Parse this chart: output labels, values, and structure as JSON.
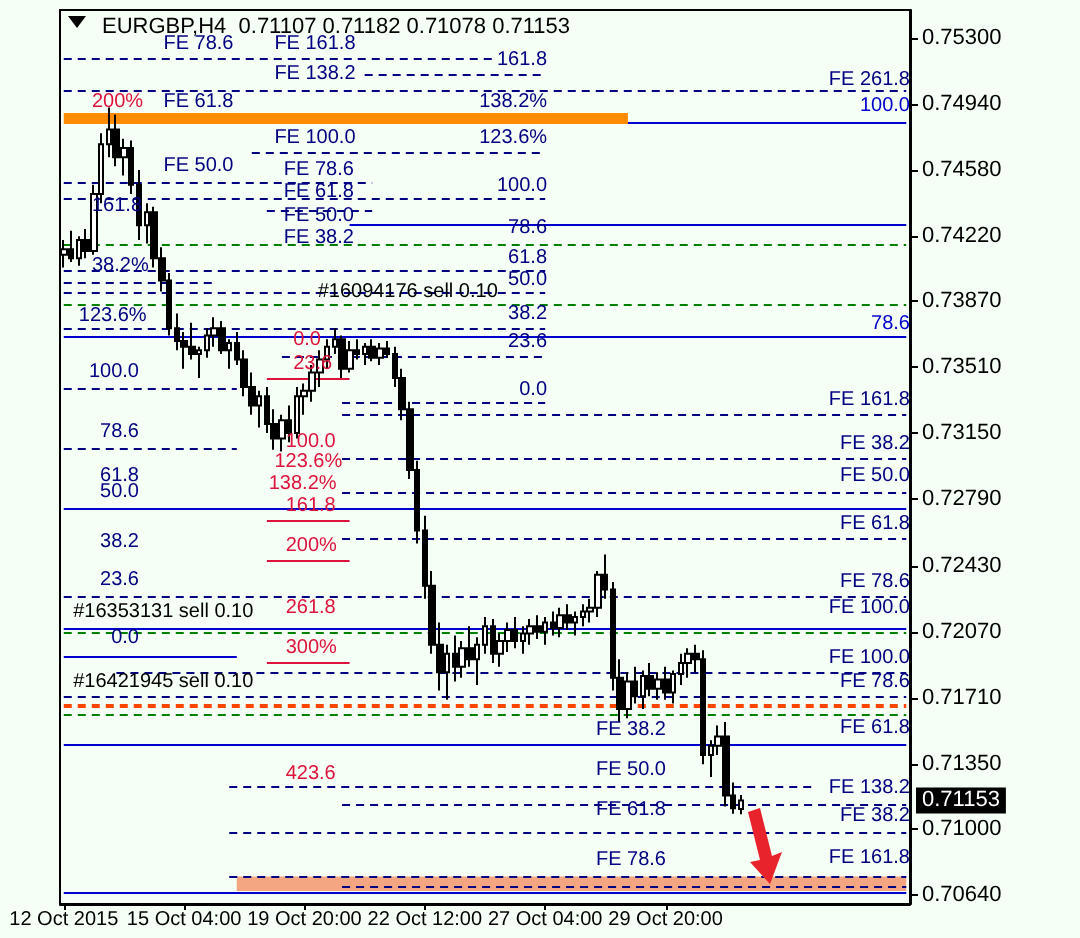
{
  "chart_data": {
    "type": "candlestick",
    "title": "EURGBP,H4  0.71107 0.71182 0.71078 0.71153",
    "color": "#000000",
    "categories": [
      "12 Oct 2015",
      null,
      null,
      null,
      null,
      null,
      null,
      null,
      null,
      null,
      null,
      null,
      null,
      null,
      null,
      null,
      "15 Oct 04:00",
      null,
      null,
      null,
      null,
      null,
      null,
      null,
      null,
      null,
      null,
      null,
      null,
      null,
      null,
      null,
      "19 Oct 20:00",
      null,
      null,
      null,
      null,
      null,
      null,
      null,
      null,
      null,
      null,
      null,
      null,
      null,
      null,
      null,
      "22 Oct 12:00",
      null,
      null,
      null,
      null,
      null,
      null,
      null,
      null,
      null,
      null,
      null,
      null,
      null,
      null,
      null,
      "27 Oct 04:00",
      null,
      null,
      null,
      null,
      null,
      null,
      null,
      null,
      null,
      null,
      null,
      null,
      null,
      null,
      null,
      "29 Oct 20:00",
      null,
      null,
      null,
      null,
      null,
      null,
      null,
      null,
      null,
      null,
      null,
      null,
      null,
      null,
      null,
      null,
      null,
      null,
      null,
      null,
      null,
      null,
      null,
      null,
      null,
      null,
      null,
      null,
      null,
      null,
      null,
      null
    ],
    "ohlc": [
      [
        0.7412,
        0.742,
        0.7405,
        0.7415
      ],
      [
        0.7415,
        0.7425,
        0.7408,
        0.741
      ],
      [
        0.741,
        0.7422,
        0.7406,
        0.742
      ],
      [
        0.742,
        0.7426,
        0.741,
        0.7414
      ],
      [
        0.7414,
        0.745,
        0.7412,
        0.7445
      ],
      [
        0.7445,
        0.7478,
        0.744,
        0.7472
      ],
      [
        0.7472,
        0.7492,
        0.7465,
        0.748
      ],
      [
        0.748,
        0.7488,
        0.746,
        0.7465
      ],
      [
        0.7465,
        0.7475,
        0.7455,
        0.747
      ],
      [
        0.747,
        0.7474,
        0.7445,
        0.745
      ],
      [
        0.745,
        0.7458,
        0.742,
        0.7428
      ],
      [
        0.7428,
        0.744,
        0.7418,
        0.7435
      ],
      [
        0.7435,
        0.7438,
        0.7405,
        0.741
      ],
      [
        0.741,
        0.7416,
        0.7392,
        0.7398
      ],
      [
        0.7398,
        0.7402,
        0.7368,
        0.7372
      ],
      [
        0.7372,
        0.738,
        0.736,
        0.7365
      ],
      [
        0.7365,
        0.737,
        0.735,
        0.7362
      ],
      [
        0.7362,
        0.7375,
        0.7355,
        0.7358
      ],
      [
        0.7358,
        0.7362,
        0.7345,
        0.736
      ],
      [
        0.736,
        0.7372,
        0.7356,
        0.7368
      ],
      [
        0.7368,
        0.7378,
        0.7362,
        0.7372
      ],
      [
        0.7372,
        0.7376,
        0.7358,
        0.736
      ],
      [
        0.736,
        0.7366,
        0.735,
        0.7364
      ],
      [
        0.7364,
        0.737,
        0.7352,
        0.7355
      ],
      [
        0.7355,
        0.736,
        0.7335,
        0.734
      ],
      [
        0.734,
        0.7348,
        0.7325,
        0.733
      ],
      [
        0.733,
        0.7338,
        0.7318,
        0.7335
      ],
      [
        0.7335,
        0.734,
        0.7315,
        0.732
      ],
      [
        0.732,
        0.7328,
        0.7306,
        0.7312
      ],
      [
        0.7312,
        0.7325,
        0.7305,
        0.7322
      ],
      [
        0.7322,
        0.733,
        0.731,
        0.7315
      ],
      [
        0.7315,
        0.734,
        0.7312,
        0.7335
      ],
      [
        0.7335,
        0.7342,
        0.7325,
        0.7338
      ],
      [
        0.7338,
        0.7352,
        0.7332,
        0.7348
      ],
      [
        0.7348,
        0.736,
        0.734,
        0.7355
      ],
      [
        0.7355,
        0.7366,
        0.735,
        0.7362
      ],
      [
        0.7362,
        0.7372,
        0.7358,
        0.7366
      ],
      [
        0.7366,
        0.7368,
        0.7345,
        0.735
      ],
      [
        0.735,
        0.7365,
        0.7348,
        0.736
      ],
      [
        0.736,
        0.7366,
        0.7355,
        0.7358
      ],
      [
        0.7358,
        0.7364,
        0.7352,
        0.7362
      ],
      [
        0.7362,
        0.7366,
        0.7354,
        0.7356
      ],
      [
        0.7356,
        0.7364,
        0.7352,
        0.7361
      ],
      [
        0.7361,
        0.7365,
        0.7356,
        0.7358
      ],
      [
        0.7358,
        0.7362,
        0.734,
        0.7345
      ],
      [
        0.7345,
        0.735,
        0.7322,
        0.7328
      ],
      [
        0.7328,
        0.7332,
        0.729,
        0.7295
      ],
      [
        0.7295,
        0.73,
        0.7255,
        0.7262
      ],
      [
        0.7262,
        0.727,
        0.7225,
        0.7232
      ],
      [
        0.7232,
        0.724,
        0.7195,
        0.72
      ],
      [
        0.72,
        0.7212,
        0.7175,
        0.7185
      ],
      [
        0.7185,
        0.72,
        0.717,
        0.7195
      ],
      [
        0.7195,
        0.7205,
        0.718,
        0.7188
      ],
      [
        0.7188,
        0.7202,
        0.7182,
        0.7198
      ],
      [
        0.7198,
        0.721,
        0.7188,
        0.7192
      ],
      [
        0.7192,
        0.7204,
        0.7178,
        0.72
      ],
      [
        0.72,
        0.7215,
        0.7195,
        0.721
      ],
      [
        0.721,
        0.7214,
        0.719,
        0.7195
      ],
      [
        0.7195,
        0.7206,
        0.7188,
        0.7202
      ],
      [
        0.7202,
        0.7212,
        0.7196,
        0.7208
      ],
      [
        0.7208,
        0.7215,
        0.7198,
        0.7202
      ],
      [
        0.7202,
        0.721,
        0.7195,
        0.7206
      ],
      [
        0.7206,
        0.7214,
        0.72,
        0.721
      ],
      [
        0.721,
        0.7216,
        0.7203,
        0.7207
      ],
      [
        0.7207,
        0.7215,
        0.72,
        0.7212
      ],
      [
        0.7212,
        0.7218,
        0.7205,
        0.7209
      ],
      [
        0.7209,
        0.722,
        0.7204,
        0.7216
      ],
      [
        0.7216,
        0.7222,
        0.7208,
        0.7212
      ],
      [
        0.7212,
        0.7218,
        0.7205,
        0.7215
      ],
      [
        0.7215,
        0.7222,
        0.721,
        0.7218
      ],
      [
        0.7218,
        0.7225,
        0.7212,
        0.722
      ],
      [
        0.722,
        0.724,
        0.7215,
        0.7238
      ],
      [
        0.7238,
        0.7249,
        0.7225,
        0.723
      ],
      [
        0.723,
        0.7234,
        0.7175,
        0.7182
      ],
      [
        0.7182,
        0.7192,
        0.7158,
        0.7165
      ],
      [
        0.7165,
        0.7185,
        0.716,
        0.718
      ],
      [
        0.718,
        0.7188,
        0.7168,
        0.7172
      ],
      [
        0.7172,
        0.7186,
        0.7165,
        0.7183
      ],
      [
        0.7183,
        0.719,
        0.7172,
        0.7176
      ],
      [
        0.7176,
        0.7185,
        0.717,
        0.7181
      ],
      [
        0.7181,
        0.7188,
        0.717,
        0.7174
      ],
      [
        0.7174,
        0.7186,
        0.7168,
        0.7184
      ],
      [
        0.7184,
        0.7195,
        0.7178,
        0.719
      ],
      [
        0.719,
        0.7198,
        0.7182,
        0.7195
      ],
      [
        0.7195,
        0.72,
        0.7185,
        0.7192
      ],
      [
        0.7192,
        0.7197,
        0.7135,
        0.714
      ],
      [
        0.714,
        0.7148,
        0.7128,
        0.7145
      ],
      [
        0.7145,
        0.7156,
        0.714,
        0.715
      ],
      [
        0.715,
        0.7158,
        0.7112,
        0.7118
      ],
      [
        0.7118,
        0.7125,
        0.7108,
        0.7111
      ],
      [
        0.71107,
        0.71182,
        0.71078,
        0.71153
      ],
      null,
      null,
      null,
      null,
      null,
      null,
      null,
      null,
      null,
      null,
      null,
      null,
      null,
      null,
      null,
      null,
      null,
      null,
      null,
      null,
      null,
      null
    ],
    "ylim": [
      0.7059,
      0.7545
    ],
    "yticks": [
      {
        "value": 0.7064,
        "label": "0.70640"
      },
      {
        "value": 0.71,
        "label": "0.71000"
      },
      {
        "value": 0.7135,
        "label": "0.71350"
      },
      {
        "value": 0.7171,
        "label": "0.71710"
      },
      {
        "value": 0.7207,
        "label": "0.72070"
      },
      {
        "value": 0.7243,
        "label": "0.72430"
      },
      {
        "value": 0.7279,
        "label": "0.72790"
      },
      {
        "value": 0.7315,
        "label": "0.73150"
      },
      {
        "value": 0.7351,
        "label": "0.73510"
      },
      {
        "value": 0.7387,
        "label": "0.73870"
      },
      {
        "value": 0.7422,
        "label": "0.74220"
      },
      {
        "value": 0.7458,
        "label": "0.74580"
      },
      {
        "value": 0.7494,
        "label": "0.74940"
      },
      {
        "value": 0.753,
        "label": "0.75300"
      }
    ],
    "grid": false,
    "annotations": [
      "FE 78.6",
      "FE 161.8",
      "161.8",
      "FE 138.2",
      "FE 261.8",
      "200%",
      "FE 61.8",
      "138.2%",
      "100.0",
      "FE 100.0",
      "123.6%",
      "FE 50.0",
      "FE 78.6",
      "100.0",
      "FE 61.8",
      "161.8",
      "FE 50.0",
      "FE 38.2",
      "78.6",
      "61.8",
      "38.2%",
      "50.0",
      "#16094176 sell 0.10",
      "38.2",
      "123.6%",
      "78.6",
      "0.0",
      "23.6",
      "23.6",
      "100.0",
      "0.0",
      "FE 161.8",
      "100.0",
      "78.6",
      "FE 38.2",
      "123.6%",
      "138.2%",
      "61.8",
      "FE 50.0",
      "50.0",
      "161.8",
      "FE 61.8",
      "38.2",
      "200%",
      "23.6",
      "FE 78.6",
      "FE 100.0",
      "261.8",
      "#16353131 sell 0.10",
      "0.0",
      "300%",
      "FE 100.0",
      "FE 78.6",
      "#16421945 sell 0.10",
      "FE 61.8",
      "FE 38.2",
      "423.6",
      "FE 50.0",
      "FE 138.2",
      "FE 61.8",
      "FE 38.2",
      "FE 78.6",
      "FE 161.8",
      "0.71153"
    ],
    "bands": [
      {
        "axis": "y",
        "from": 0.7483,
        "to": 0.7489,
        "color": "#ff8c00"
      },
      {
        "axis": "y",
        "from": 0.7066,
        "to": 0.7074,
        "color": "#f4a582"
      }
    ],
    "ref_lines": [
      {
        "axis": "y",
        "value": 0.7519,
        "color": "#000080",
        "line_style": "dashed"
      },
      {
        "axis": "y",
        "value": 0.751,
        "color": "#000080",
        "line_style": "dashed"
      },
      {
        "axis": "y",
        "value": 0.7501,
        "color": "#000080",
        "line_style": "dashed"
      },
      {
        "axis": "y",
        "value": 0.7484,
        "color": "#0000cd",
        "line_style": "solid"
      },
      {
        "axis": "y",
        "value": 0.7468,
        "color": "#000080",
        "line_style": "dashed"
      },
      {
        "axis": "y",
        "value": 0.7451,
        "color": "#000080",
        "line_style": "dashed"
      },
      {
        "axis": "y",
        "value": 0.7442,
        "color": "#000080",
        "line_style": "dashed"
      },
      {
        "axis": "y",
        "value": 0.7436,
        "color": "#000080",
        "line_style": "dashed"
      },
      {
        "axis": "y",
        "value": 0.7428,
        "color": "#0000cd",
        "line_style": "solid"
      },
      {
        "axis": "y",
        "value": 0.7418,
        "color": "#008000",
        "line_style": "dashed"
      },
      {
        "axis": "y",
        "value": 0.7403,
        "color": "#000080",
        "line_style": "dashed"
      },
      {
        "axis": "y",
        "value": 0.7397,
        "color": "#000080",
        "line_style": "dashed"
      },
      {
        "axis": "y",
        "value": 0.7391,
        "color": "#000080",
        "line_style": "dashed"
      },
      {
        "axis": "y",
        "value": 0.7385,
        "color": "#008000",
        "line_style": "dashed"
      },
      {
        "axis": "y",
        "value": 0.7372,
        "color": "#000080",
        "line_style": "dashed"
      },
      {
        "axis": "y",
        "value": 0.7367,
        "color": "#0000cd",
        "line_style": "solid"
      },
      {
        "axis": "y",
        "value": 0.7357,
        "color": "#000080",
        "line_style": "dashed"
      },
      {
        "axis": "y",
        "value": 0.7345,
        "color": "#dc143c",
        "line_style": "solid"
      },
      {
        "axis": "y",
        "value": 0.7339,
        "color": "#000080",
        "line_style": "dashed"
      },
      {
        "axis": "y",
        "value": 0.7332,
        "color": "#000080",
        "line_style": "dashed"
      },
      {
        "axis": "y",
        "value": 0.7325,
        "color": "#000080",
        "line_style": "dashed"
      },
      {
        "axis": "y",
        "value": 0.7307,
        "color": "#000080",
        "line_style": "dashed"
      },
      {
        "axis": "y",
        "value": 0.7301,
        "color": "#000080",
        "line_style": "dashed"
      },
      {
        "axis": "y",
        "value": 0.7283,
        "color": "#000080",
        "line_style": "dashed"
      },
      {
        "axis": "y",
        "value": 0.7274,
        "color": "#0000cd",
        "line_style": "solid"
      },
      {
        "axis": "y",
        "value": 0.7268,
        "color": "#dc143c",
        "line_style": "solid"
      },
      {
        "axis": "y",
        "value": 0.7258,
        "color": "#000080",
        "line_style": "dashed"
      },
      {
        "axis": "y",
        "value": 0.7246,
        "color": "#dc143c",
        "line_style": "solid"
      },
      {
        "axis": "y",
        "value": 0.7226,
        "color": "#000080",
        "line_style": "dashed"
      },
      {
        "axis": "y",
        "value": 0.7209,
        "color": "#0000cd",
        "line_style": "solid"
      },
      {
        "axis": "y",
        "value": 0.7207,
        "color": "#008000",
        "line_style": "dashed"
      },
      {
        "axis": "y",
        "value": 0.7194,
        "color": "#0000cd",
        "line_style": "solid"
      },
      {
        "axis": "y",
        "value": 0.719,
        "color": "#dc143c",
        "line_style": "solid"
      },
      {
        "axis": "y",
        "value": 0.7185,
        "color": "#000080",
        "line_style": "dashed"
      },
      {
        "axis": "y",
        "value": 0.7172,
        "color": "#000080",
        "line_style": "dashed"
      },
      {
        "axis": "y",
        "value": 0.7167,
        "color": "#ff4500",
        "line_style": "dashed"
      },
      {
        "axis": "y",
        "value": 0.7162,
        "color": "#008000",
        "line_style": "dashed"
      },
      {
        "axis": "y",
        "value": 0.7146,
        "color": "#0000cd",
        "line_style": "solid"
      },
      {
        "axis": "y",
        "value": 0.7123,
        "color": "#000080",
        "line_style": "dashed"
      },
      {
        "axis": "y",
        "value": 0.7113,
        "color": "#000080",
        "line_style": "dashed"
      },
      {
        "axis": "y",
        "value": 0.7098,
        "color": "#000080",
        "line_style": "dashed"
      },
      {
        "axis": "y",
        "value": 0.7074,
        "color": "#000080",
        "line_style": "dashed"
      },
      {
        "axis": "y",
        "value": 0.7069,
        "color": "#000080",
        "line_style": "dashed"
      },
      {
        "axis": "y",
        "value": 0.7065,
        "color": "#0000cd",
        "line_style": "solid"
      }
    ]
  }
}
